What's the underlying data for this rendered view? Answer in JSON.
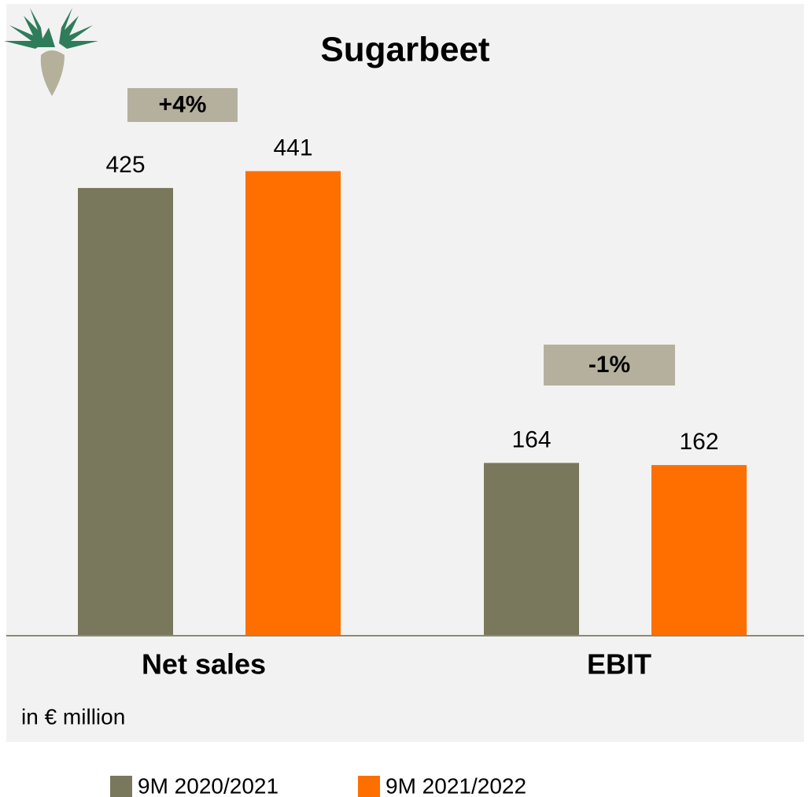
{
  "chart_data": {
    "type": "bar",
    "title": "Sugarbeet",
    "unit_label": "in € million",
    "categories": [
      "Net sales",
      "EBIT"
    ],
    "series": [
      {
        "name": "9M 2020/2021",
        "color": "#79785c",
        "values": [
          425,
          164
        ]
      },
      {
        "name": "9M 2021/2022",
        "color": "#ff6f00",
        "values": [
          441,
          162
        ]
      }
    ],
    "annotations": [
      "+4%",
      "-1%"
    ]
  }
}
